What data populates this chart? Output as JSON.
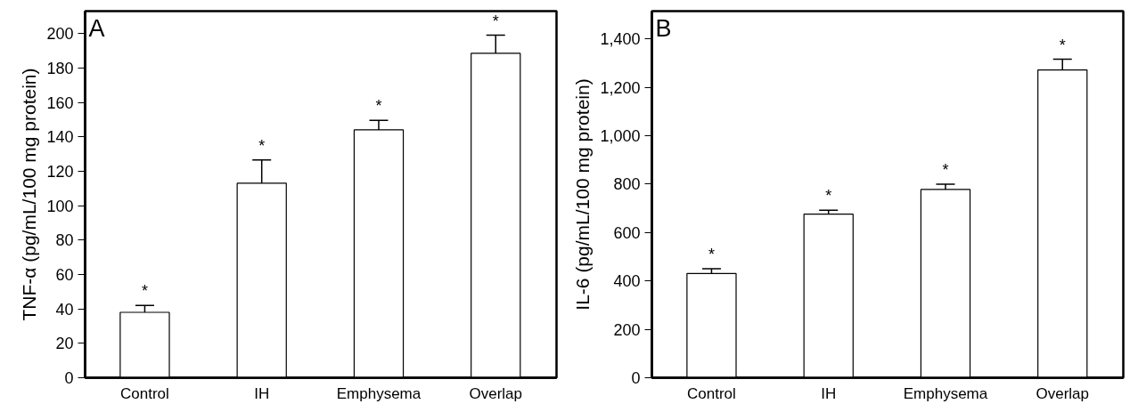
{
  "chart_data": [
    {
      "type": "bar",
      "title": "A",
      "ylabel": "TNF-α (pg/mL/100 mg protein)",
      "categories": [
        "Control",
        "IH",
        "Emphysema",
        "Overlap"
      ],
      "values": [
        38,
        113,
        144,
        188.5
      ],
      "errors": [
        [
          38,
          42
        ],
        [
          113,
          126.5
        ],
        [
          144,
          149.5
        ],
        [
          188.5,
          199
        ]
      ],
      "color": "#ffffff",
      "ylim": [
        0,
        213
      ],
      "yticks": [
        0,
        20,
        40,
        60,
        80,
        100,
        120,
        140,
        160,
        180,
        200
      ],
      "annotations": [
        "*",
        "*",
        "*",
        "*"
      ]
    },
    {
      "type": "bar",
      "title": "B",
      "ylabel": "IL-6 (pg/mL/100 mg protein)",
      "categories": [
        "Control",
        "IH",
        "Emphysema",
        "Overlap"
      ],
      "values": [
        431,
        676,
        778,
        1272
      ],
      "errors": [
        [
          431,
          450
        ],
        [
          676,
          692
        ],
        [
          778,
          800
        ],
        [
          1272,
          1316
        ]
      ],
      "color": "#ffffff",
      "ylim": [
        0,
        1515
      ],
      "yticks": [
        0,
        200,
        400,
        600,
        800,
        {
          "value": 1000,
          "label": "1,000"
        },
        {
          "value": 1200,
          "label": "1,200"
        },
        {
          "value": 1400,
          "label": "1,400"
        }
      ],
      "annotations": [
        "*",
        "*",
        "*",
        "*"
      ]
    }
  ]
}
